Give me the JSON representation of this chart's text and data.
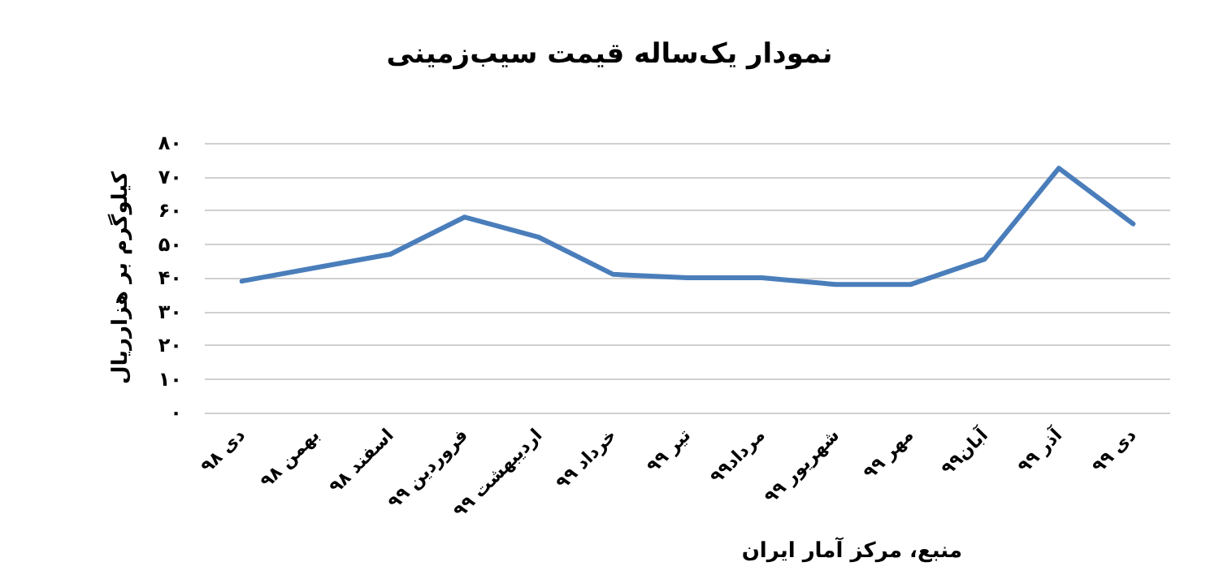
{
  "chart_data": {
    "type": "line",
    "title": "نمودار یک‌ساله قیمت سیب‌زمینی",
    "ylabel": "کیلوگرم بر هزارریال",
    "annotations": [
      "منبع، مرکز آمار ایران"
    ],
    "categories": [
      "دی ۹۸",
      "بهمن ۹۸",
      "اسفند ۹۸",
      "فروردین ۹۹",
      "اردیبهشت ۹۹",
      "خرداد ۹۹",
      "تیر ۹۹",
      "مرداد۹۹",
      "شهریور ۹۹",
      "مهر ۹۹",
      "آبان۹۹",
      "آذر ۹۹",
      "دی ۹۹"
    ],
    "series": [
      {
        "color": "#4a7ebb",
        "values": [
          39,
          43,
          47,
          58,
          52,
          41,
          40,
          40,
          38,
          38,
          45.5,
          72.5,
          56
        ]
      }
    ],
    "ylim": [
      0,
      80
    ],
    "yticks": [
      {
        "value": 0,
        "label": "۰"
      },
      {
        "value": 10,
        "label": "۱۰"
      },
      {
        "value": 20,
        "label": "۲۰"
      },
      {
        "value": 30,
        "label": "۳۰"
      },
      {
        "value": 40,
        "label": "۴۰"
      },
      {
        "value": 50,
        "label": "۵۰"
      },
      {
        "value": 60,
        "label": "۶۰"
      },
      {
        "value": 70,
        "label": "۷۰"
      },
      {
        "value": 80,
        "label": "۸۰"
      }
    ],
    "grid": "y",
    "marker": "none",
    "line_style": "solid"
  }
}
